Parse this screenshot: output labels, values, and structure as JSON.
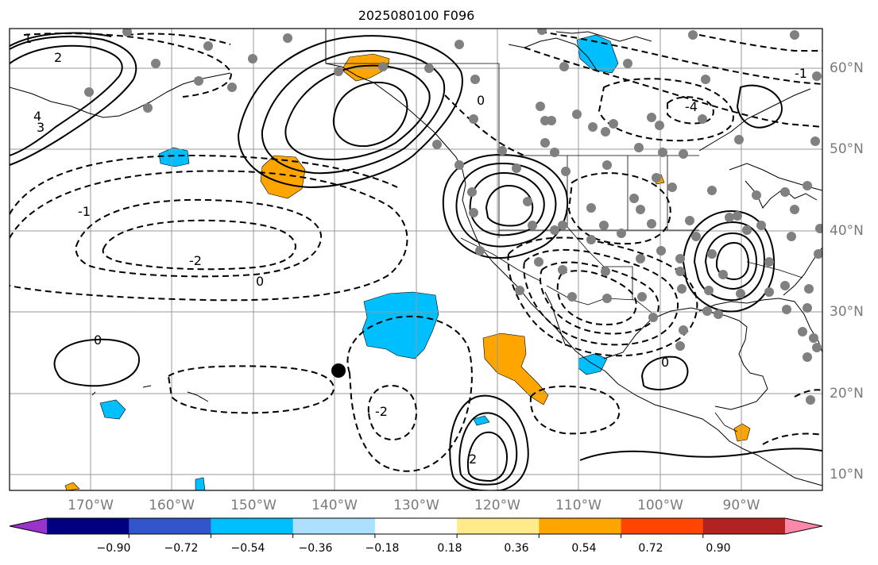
{
  "title": "2025080100 F096",
  "map": {
    "projection": "Plate Carree",
    "lon_labels": [
      "170°W",
      "160°W",
      "150°W",
      "140°W",
      "130°W",
      "120°W",
      "110°W",
      "100°W",
      "90°W"
    ],
    "lat_labels": [
      "60°N",
      "50°N",
      "40°N",
      "30°N",
      "20°N",
      "10°N"
    ],
    "contour_labels": [
      "1",
      "2",
      "0",
      "-1",
      "-2",
      "4",
      "3",
      "-4",
      "0",
      "2",
      "0",
      "-2",
      "-1",
      "0"
    ],
    "colors": {
      "positive_mid": "#FFA500",
      "negative_mid": "#00BFFF",
      "contour": "#000000",
      "station_marker": "#808080",
      "storm_marker": "#000000",
      "gridline": "#999999"
    },
    "shading_type": "filled anomaly field",
    "station_markers": "gray dots",
    "storm_marker": "black dot"
  },
  "colorbar": {
    "orientation": "horizontal",
    "extend": "both",
    "colors": [
      "#9933CC",
      "#000080",
      "#3355CC",
      "#00BFFF",
      "#ADDFFF",
      "#FFFFFF",
      "#FFEB8A",
      "#FFA500",
      "#FF4500",
      "#B22222",
      "#FF88AA"
    ],
    "tick_labels": [
      "−0.90",
      "−0.72",
      "−0.54",
      "−0.36",
      "−0.18",
      "0.18",
      "0.36",
      "0.54",
      "0.72",
      "0.90"
    ]
  }
}
